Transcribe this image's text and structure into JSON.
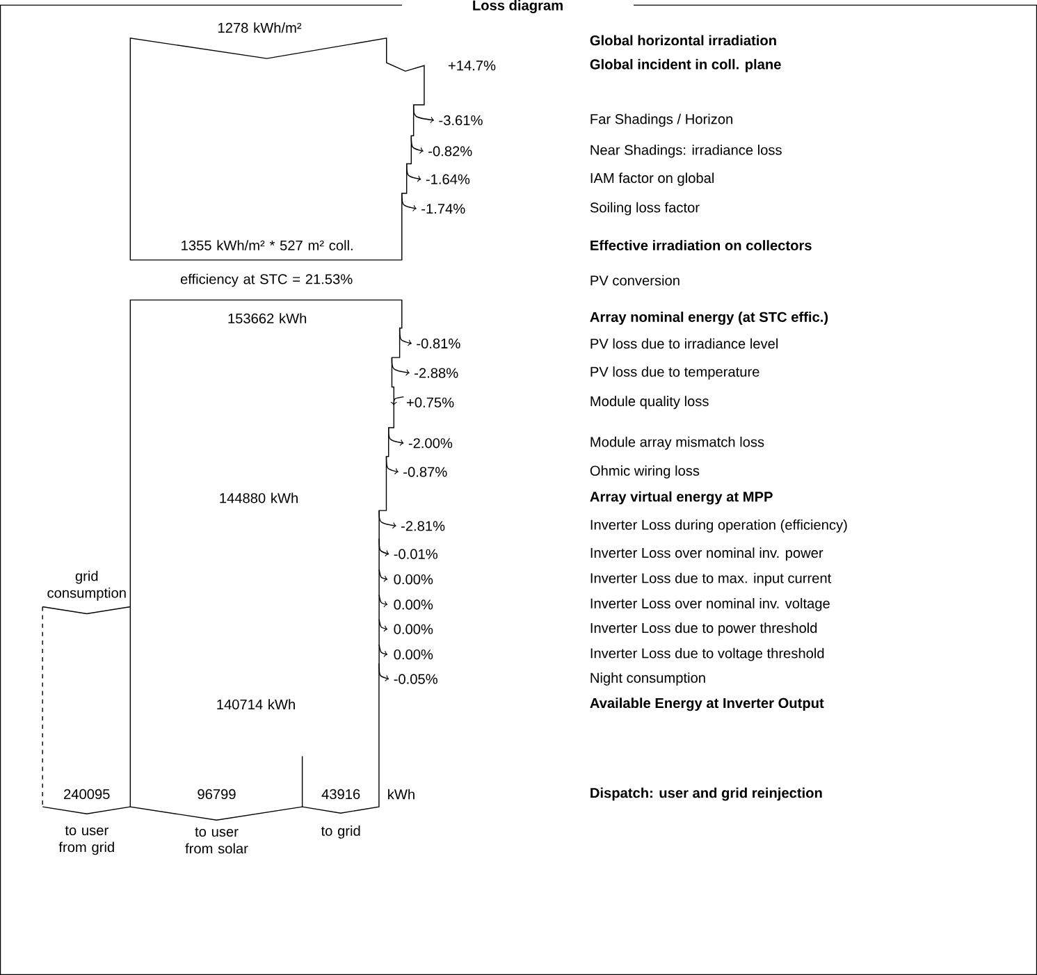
{
  "chart_data": {
    "type": "other",
    "title": "Loss diagram",
    "categories": [
      "**Global horizontal irradiation**",
      "**Global incident in coll. plane**",
      "Far Shadings / Horizon",
      "Near Shadings: irradiance loss",
      "IAM factor on global",
      "Soiling loss factor",
      "**Effective irradiation on collectors**",
      "PV conversion",
      "**Array nominal energy (at STC effic.)**",
      "PV loss due to irradiance level",
      "PV loss due to temperature",
      "Module quality loss",
      "Module array mismatch loss",
      "Ohmic wiring loss",
      "**Array virtual energy at MPP**",
      "Inverter Loss during operation (efficiency)",
      "Inverter Loss over nominal inv. power",
      "Inverter Loss due to max. input current",
      "Inverter Loss over nominal inv. voltage",
      "Inverter Loss due to power threshold",
      "Inverter Loss due to voltage threshold",
      "Night consumption",
      "**Available Energy at Inverter Output**",
      "**Dispatch: user and grid reinjection**"
    ],
    "values": [
      null,
      14.7,
      -3.61,
      -0.82,
      -1.64,
      -1.74,
      null,
      null,
      null,
      -0.81,
      -2.88,
      0.75,
      -2.0,
      -0.87,
      null,
      -2.81,
      -0.01,
      0.0,
      0.0,
      0.0,
      0.0,
      -0.05,
      null,
      null
    ],
    "value_labels": [
      null,
      "+14.7%",
      "-3.61%",
      "-0.82%",
      "-1.64%",
      "-1.74%",
      null,
      null,
      null,
      "-0.81%",
      "-2.88%",
      "+0.75%",
      "-2.00%",
      "-0.87%",
      null,
      "-2.81%",
      "-0.01%",
      "0.00%",
      "0.00%",
      "0.00%",
      "0.00%",
      "-0.05%",
      null,
      null
    ],
    "annotations": [
      "1278 kWh/m²",
      "1355 kWh/m² * 527 m² coll.",
      "efficiency at STC = 21.53%",
      "153662 kWh",
      "144880 kWh",
      "140714 kWh",
      "grid consumption",
      "240095",
      "96799",
      "43916",
      "kWh",
      "to user from grid",
      "to user from solar",
      "to grid"
    ]
  }
}
